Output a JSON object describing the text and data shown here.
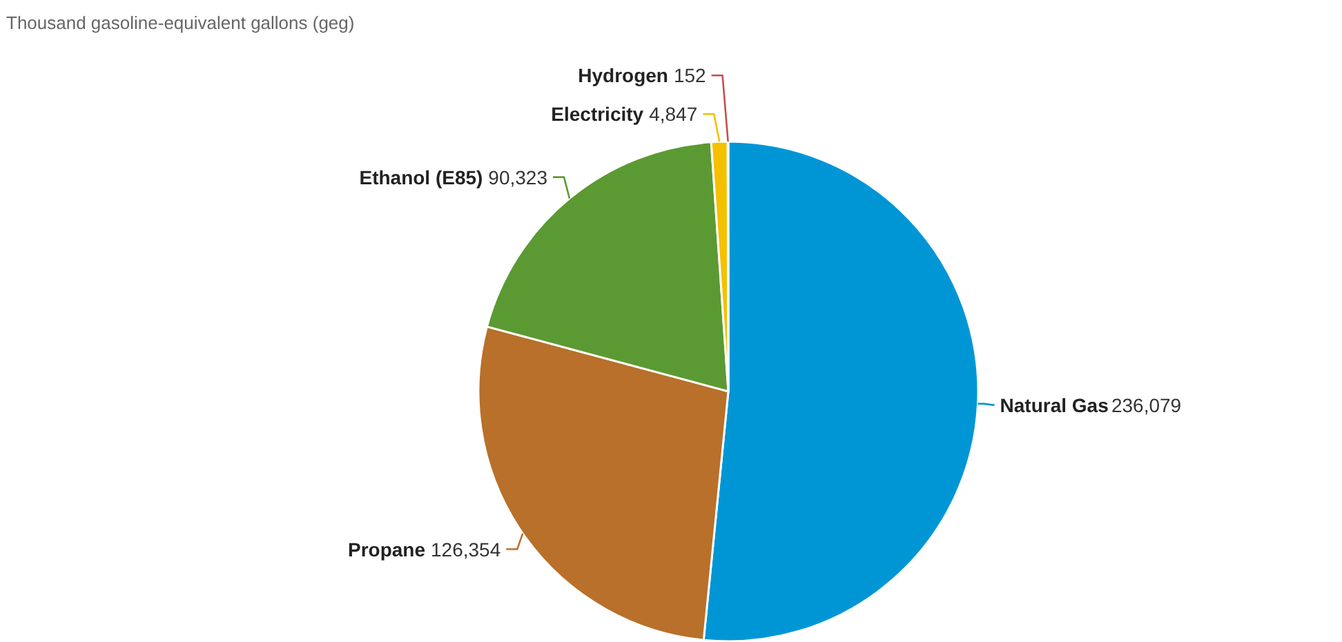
{
  "chart_data": {
    "type": "pie",
    "title": "Thousand gasoline-equivalent gallons (geg)",
    "categories": [
      "Natural Gas",
      "Propane",
      "Ethanol (E85)",
      "Electricity",
      "Hydrogen"
    ],
    "values": [
      236079,
      126354,
      90323,
      4847,
      152
    ],
    "colors": [
      "#0096d6",
      "#b8702a",
      "#5b9a32",
      "#f5c000",
      "#c0504d"
    ],
    "value_labels": [
      "236,079",
      "126,354",
      "90,323",
      "4,847",
      "152"
    ]
  }
}
